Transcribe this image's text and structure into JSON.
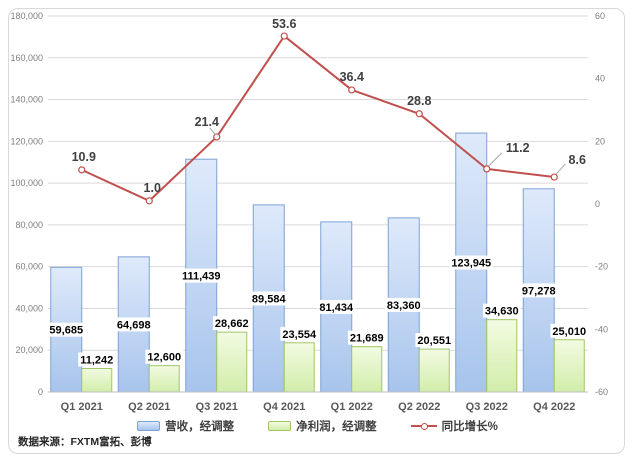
{
  "source_note": "数据来源：FXTM富拓、彭博",
  "chart_data": {
    "type": "combo_bar_line",
    "title": "",
    "categories": [
      "Q1 2021",
      "Q2 2021",
      "Q3 2021",
      "Q4 2021",
      "Q1 2022",
      "Q2 2022",
      "Q3 2022",
      "Q4 2022"
    ],
    "series": [
      {
        "name": "营收，经调整",
        "type": "bar",
        "axis": "left",
        "values": [
          59685,
          64698,
          111439,
          89584,
          81434,
          83360,
          123945,
          97278
        ],
        "labels": [
          "59,685",
          "64,698",
          "111,439",
          "89,584",
          "81,434",
          "83,360",
          "123,945",
          "97,278"
        ],
        "label_position": "inside-center",
        "fill_top": "#dfeafb",
        "fill_bottom": "#a7c4ec",
        "border": "#7da2d4"
      },
      {
        "name": "净利润，经调整",
        "type": "bar",
        "axis": "left",
        "values": [
          11242,
          12600,
          28662,
          23554,
          21689,
          20551,
          34630,
          25010
        ],
        "labels": [
          "11,242",
          "12,600",
          "28,662",
          "23,554",
          "21,689",
          "20,551",
          "34,630",
          "25,010"
        ],
        "label_position": "outside-end",
        "fill_top": "#f2fbe2",
        "fill_bottom": "#d2edaa",
        "border": "#a2c666"
      },
      {
        "name": "同比增长%",
        "type": "line",
        "axis": "right",
        "values": [
          10.9,
          1.0,
          21.4,
          53.6,
          36.4,
          28.8,
          11.2,
          8.6
        ],
        "labels": [
          "10.9",
          "1.0",
          "21.4",
          "53.6",
          "36.4",
          "28.8",
          "11.2",
          "8.6"
        ],
        "color": "#c0504d",
        "marker": "open-circle"
      }
    ],
    "left_axis": {
      "min": 0,
      "max": 180000,
      "step": 20000,
      "labels": [
        "0",
        "20,000",
        "40,000",
        "60,000",
        "80,000",
        "100,000",
        "120,000",
        "140,000",
        "160,000",
        "180,000"
      ]
    },
    "right_axis": {
      "min": -60,
      "max": 60,
      "step": 20,
      "labels": [
        "-60",
        "-40",
        "-20",
        "0",
        "20",
        "40",
        "60"
      ]
    },
    "grid": true,
    "legend_position": "bottom"
  },
  "ui_colors": {
    "grid_line": "#dadada",
    "axis_line": "#bfbfbf",
    "tick_text": "#7f7f7f",
    "category_text": "#595959",
    "bar_label_text": "#000000",
    "line_label_text": "#404040",
    "leader_line": "#a6a6a6",
    "frame_border": "#d9d9d9"
  }
}
